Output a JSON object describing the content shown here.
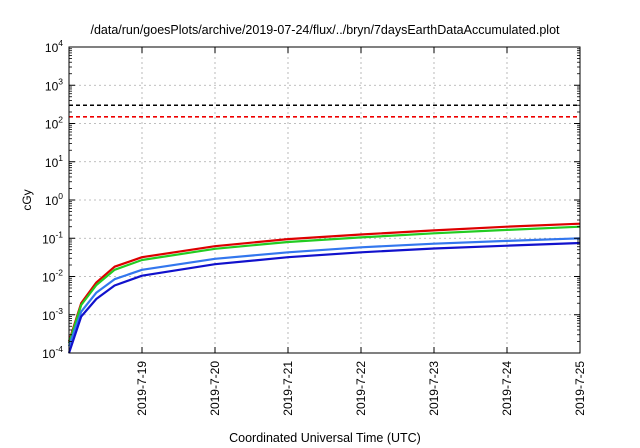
{
  "chart_data": {
    "type": "line",
    "title": "/data/run/goesPlots/archive/2019-07-24/flux/../bryn/7daysEarthDataAccumulated.plot",
    "xlabel": "Coordinated Universal Time (UTC)",
    "ylabel": "cGy",
    "y_scale": "log",
    "ylim": [
      0.0001,
      10000
    ],
    "xlim": [
      "2019-07-18",
      "2019-07-25"
    ],
    "grid": true,
    "legend": "none",
    "y_ticks": [
      {
        "base": "10",
        "exp": "-4"
      },
      {
        "base": "10",
        "exp": "-3"
      },
      {
        "base": "10",
        "exp": "-2"
      },
      {
        "base": "10",
        "exp": "-1"
      },
      {
        "base": "10",
        "exp": "0"
      },
      {
        "base": "10",
        "exp": "1"
      },
      {
        "base": "10",
        "exp": "2"
      },
      {
        "base": "10",
        "exp": "3"
      },
      {
        "base": "10",
        "exp": "4"
      }
    ],
    "x_ticks": [
      "2019-7-19",
      "2019-7-20",
      "2019-7-21",
      "2019-7-22",
      "2019-7-23",
      "2019-7-24",
      "2019-7-25"
    ],
    "thresholds": [
      {
        "value": 300,
        "color": "#000000"
      },
      {
        "value": 150,
        "color": "#ee0000"
      }
    ],
    "x": [
      "2019-07-18",
      "2019-07-18 04:00",
      "2019-07-18 09:00",
      "2019-07-18 15:00",
      "2019-07-19",
      "2019-07-20",
      "2019-07-21",
      "2019-07-22",
      "2019-07-23",
      "2019-07-24",
      "2019-07-25"
    ],
    "series": [
      {
        "color": "#dd0000",
        "values": [
          0.0002,
          0.002,
          0.007,
          0.018,
          0.032,
          0.062,
          0.095,
          0.125,
          0.16,
          0.2,
          0.24
        ]
      },
      {
        "color": "#22cc22",
        "values": [
          0.00018,
          0.0018,
          0.006,
          0.015,
          0.027,
          0.053,
          0.08,
          0.105,
          0.135,
          0.165,
          0.2
        ]
      },
      {
        "color": "#3377ee",
        "values": [
          0.00015,
          0.0012,
          0.0038,
          0.0085,
          0.015,
          0.029,
          0.043,
          0.058,
          0.072,
          0.085,
          0.1
        ]
      },
      {
        "color": "#1111cc",
        "values": [
          0.0001,
          0.0009,
          0.0026,
          0.0058,
          0.0105,
          0.021,
          0.032,
          0.043,
          0.054,
          0.064,
          0.075
        ]
      }
    ]
  }
}
